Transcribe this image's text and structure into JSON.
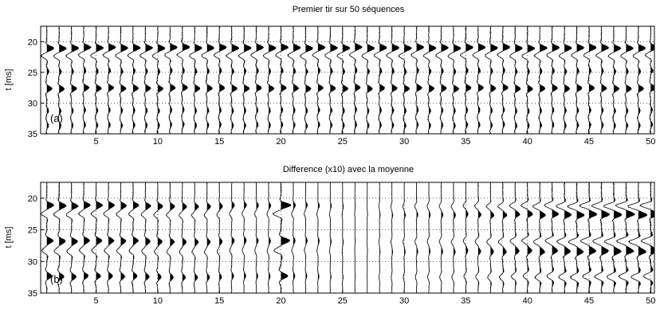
{
  "chart_data": [
    {
      "type": "wiggle-seismogram",
      "title": "Premier tir sur 50 séquences",
      "panel_label": "(a)",
      "ylabel": "t [ms]",
      "xlabel": "",
      "xlim": [
        0.5,
        50.3
      ],
      "ylim": [
        17.5,
        35
      ],
      "y_reversed": true,
      "xticks": [
        5,
        10,
        15,
        20,
        25,
        30,
        35,
        40,
        45,
        50
      ],
      "yticks": [
        20,
        25,
        30,
        35
      ],
      "grid": "dotted",
      "trace_count": 50,
      "trace_spacing": 1,
      "events": [
        {
          "t": 21.0,
          "amp": 1.0,
          "width": 0.5
        },
        {
          "t": 22.3,
          "amp": -0.75,
          "width": 0.5
        },
        {
          "t": 27.6,
          "amp": 0.75,
          "width": 0.6
        },
        {
          "t": 24.8,
          "amp": 0.3,
          "width": 0.6
        },
        {
          "t": 31.2,
          "amp": 0.25,
          "width": 0.7
        },
        {
          "t": 33.6,
          "amp": 0.25,
          "width": 0.7
        }
      ],
      "fill": "positive",
      "line_color": "#000000"
    },
    {
      "type": "wiggle-seismogram",
      "title": "Difference (x10) avec la moyenne",
      "panel_label": "(b)",
      "ylabel": "t [ms]",
      "xlabel": "",
      "xlim": [
        0.5,
        50.3
      ],
      "ylim": [
        17.5,
        35
      ],
      "y_reversed": true,
      "xticks": [
        5,
        10,
        15,
        20,
        25,
        30,
        35,
        40,
        45,
        50
      ],
      "yticks": [
        20,
        25,
        30,
        35
      ],
      "grid": "dotted",
      "trace_count": 50,
      "trace_spacing": 1,
      "events": [
        {
          "t": 21.2,
          "amp": 1.0,
          "width": 0.5
        },
        {
          "t": 22.6,
          "amp": -0.8,
          "width": 0.5
        },
        {
          "t": 26.8,
          "amp": 0.9,
          "width": 0.6
        },
        {
          "t": 28.4,
          "amp": -0.7,
          "width": 0.6
        },
        {
          "t": 32.4,
          "amp": 0.7,
          "width": 0.7
        }
      ],
      "amplitude_profile": [
        1.0,
        1.0,
        0.95,
        0.9,
        0.9,
        0.85,
        0.8,
        0.8,
        0.75,
        0.7,
        0.65,
        0.6,
        0.55,
        0.5,
        0.45,
        0.4,
        0.35,
        0.3,
        0.3,
        1.4,
        0.3,
        0.25,
        0.2,
        0.15,
        0.1,
        0.05,
        0.05,
        0.1,
        0.15,
        0.2,
        0.25,
        0.25,
        0.3,
        0.35,
        0.4,
        0.5,
        0.6,
        0.7,
        0.8,
        0.9,
        1.0,
        1.1,
        1.2,
        1.3,
        1.35,
        1.4,
        1.45,
        1.5,
        1.5,
        1.5
      ],
      "polarity_flip_after_trace": 26,
      "fill": "positive",
      "line_color": "#000000"
    }
  ]
}
